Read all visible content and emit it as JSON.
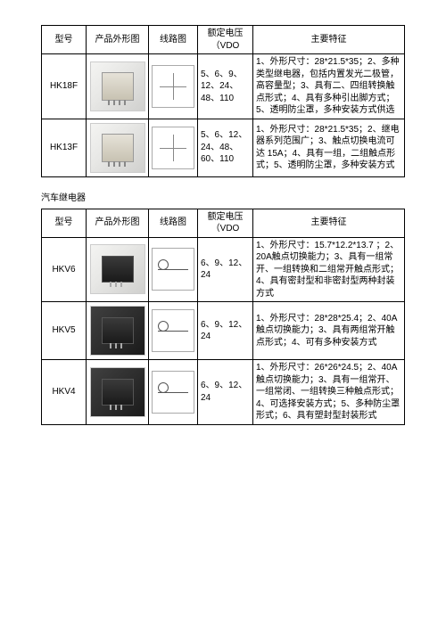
{
  "headers": {
    "model": "型号",
    "photo": "产品外形图",
    "circuit": "线路图",
    "voltage": "额定电压（VDO",
    "feature": "主要特征"
  },
  "table1": {
    "rows": [
      {
        "model": "HK18F",
        "voltage": "5、6、9、12、24、48、110",
        "feature": "1、外形尺寸：28*21.5*35；2、多种类型继电器，包括内置发光二极管，高容量型；3、具有二、四组转换触点形式；4、具有多种引出脚方式；5、透明防尘罩，多种安装方式供选"
      },
      {
        "model": "HK13F",
        "voltage": "5、6、12、24、48、60、110",
        "feature": "1、外形尺寸：28*21.5*35；2、继电器系列范围广；3、触点切换电流可达 15A；4、具有一组，二组触点形式；5、透明防尘罩，多种安装方式"
      }
    ]
  },
  "section_title": "汽车继电器",
  "table2": {
    "rows": [
      {
        "model": "HKV6",
        "voltage": "6、9、12、24",
        "feature": "1、外形尺寸：15.7*12.2*13.7 ；2、20A触点切换能力；3、具有一组常开、一组转换和二组常开触点形式；4、具有密封型和非密封型两种封装方式"
      },
      {
        "model": "HKV5",
        "voltage": "6、9、12、24",
        "feature": "1、外形尺寸：28*28*25.4；2、40A触点切换能力；3、具有两组常开触点形式；4、可有多种安装方式"
      },
      {
        "model": "HKV4",
        "voltage": "6、9、12、24",
        "feature": "1、外形尺寸：26*26*24.5；2、40A触点切换能力；3、具有一组常开、一组常闭、一组转换三种触点形式；4、可选择安装方式；5、多种防尘罩形式；6、具有塑封型封装形式"
      }
    ]
  }
}
